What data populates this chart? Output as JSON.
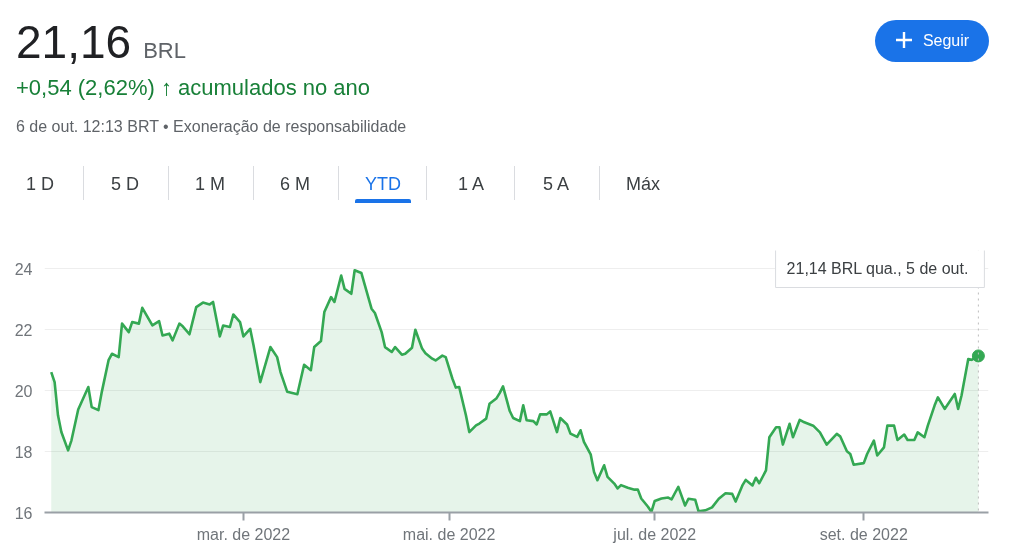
{
  "chart_data": {
    "type": "area",
    "title": "21,16",
    "subtitle": "+0,54 (2,62%) ↑ acumulados no ano",
    "annotations": [
      "BRL",
      "6 de out. 12:13 BRT • Exoneração de responsabilidade",
      "Seguir",
      "1 D",
      "5 D",
      "1 M",
      "6 M",
      "YTD",
      "1 A",
      "5 A",
      "Máx",
      "21,14 BRL  qua., 5 de out."
    ],
    "x": [
      "2022-01-03",
      "2022-01-04",
      "2022-01-05",
      "2022-01-06",
      "2022-01-08",
      "2022-01-09",
      "2022-01-11",
      "2022-01-14",
      "2022-01-15",
      "2022-01-17",
      "2022-01-18",
      "2022-01-20",
      "2022-01-21",
      "2022-01-23",
      "2022-01-24",
      "2022-01-26",
      "2022-01-27",
      "2022-01-29",
      "2022-01-30",
      "2022-02-02",
      "2022-02-04",
      "2022-02-05",
      "2022-02-07",
      "2022-02-08",
      "2022-02-10",
      "2022-02-11",
      "2022-02-13",
      "2022-02-15",
      "2022-02-17",
      "2022-02-19",
      "2022-02-20",
      "2022-02-22",
      "2022-02-23",
      "2022-02-25",
      "2022-02-26",
      "2022-02-28",
      "2022-03-01",
      "2022-03-03",
      "2022-03-04",
      "2022-03-06",
      "2022-03-09",
      "2022-03-11",
      "2022-03-12",
      "2022-03-14",
      "2022-03-17",
      "2022-03-19",
      "2022-03-21",
      "2022-03-22",
      "2022-03-24",
      "2022-03-25",
      "2022-03-27",
      "2022-03-28",
      "2022-03-30",
      "2022-03-31",
      "2022-04-02",
      "2022-04-03",
      "2022-04-05",
      "2022-04-08",
      "2022-04-09",
      "2022-04-11",
      "2022-04-12",
      "2022-04-14",
      "2022-04-15",
      "2022-04-17",
      "2022-04-18",
      "2022-04-20",
      "2022-04-21",
      "2022-04-23",
      "2022-04-24",
      "2022-04-26",
      "2022-04-27",
      "2022-04-29",
      "2022-04-30",
      "2022-05-02",
      "2022-05-03",
      "2022-05-04",
      "2022-05-06",
      "2022-05-07",
      "2022-05-09",
      "2022-05-10",
      "2022-05-12",
      "2022-05-13",
      "2022-05-15",
      "2022-05-16",
      "2022-05-17",
      "2022-05-19",
      "2022-05-20",
      "2022-05-22",
      "2022-05-23",
      "2022-05-24",
      "2022-05-26",
      "2022-05-27",
      "2022-05-28",
      "2022-05-30",
      "2022-05-31",
      "2022-06-02",
      "2022-06-03",
      "2022-06-05",
      "2022-06-06",
      "2022-06-08",
      "2022-06-09",
      "2022-06-10",
      "2022-06-12",
      "2022-06-13",
      "2022-06-14",
      "2022-06-16",
      "2022-06-17",
      "2022-06-19",
      "2022-06-20",
      "2022-06-21",
      "2022-06-23",
      "2022-06-25",
      "2022-06-26",
      "2022-06-27",
      "2022-06-29",
      "2022-06-30",
      "2022-07-01",
      "2022-07-03",
      "2022-07-05",
      "2022-07-06",
      "2022-07-07",
      "2022-07-08",
      "2022-07-10",
      "2022-07-11",
      "2022-07-13",
      "2022-07-14",
      "2022-07-16",
      "2022-07-18",
      "2022-07-20",
      "2022-07-22",
      "2022-07-24",
      "2022-07-25",
      "2022-07-27",
      "2022-07-28",
      "2022-07-30",
      "2022-07-31",
      "2022-08-01",
      "2022-08-03",
      "2022-08-04",
      "2022-08-06",
      "2022-08-07",
      "2022-08-08",
      "2022-08-10",
      "2022-08-11",
      "2022-08-13",
      "2022-08-14",
      "2022-08-17",
      "2022-08-19",
      "2022-08-21",
      "2022-08-24",
      "2022-08-25",
      "2022-08-27",
      "2022-08-28",
      "2022-08-29",
      "2022-09-01",
      "2022-09-02",
      "2022-09-04",
      "2022-09-05",
      "2022-09-07",
      "2022-09-08",
      "2022-09-10",
      "2022-09-11",
      "2022-09-13",
      "2022-09-14",
      "2022-09-16",
      "2022-09-17",
      "2022-09-19",
      "2022-09-20",
      "2022-09-22",
      "2022-09-23",
      "2022-09-25",
      "2022-09-26",
      "2022-09-28",
      "2022-09-29",
      "2022-09-30",
      "2022-10-02",
      "2022-10-03",
      "2022-10-05"
    ],
    "series": [
      {
        "color": "#34a853",
        "values": [
          20.61,
          20.28,
          19.19,
          18.64,
          18.04,
          18.37,
          19.38,
          20.12,
          19.46,
          19.36,
          19.96,
          21.0,
          21.21,
          21.1,
          22.2,
          21.92,
          22.25,
          22.2,
          22.72,
          22.14,
          22.28,
          21.81,
          21.87,
          21.65,
          22.2,
          22.11,
          21.85,
          22.74,
          22.89,
          22.83,
          22.91,
          21.78,
          22.14,
          22.09,
          22.5,
          22.25,
          21.78,
          22.03,
          21.49,
          20.28,
          21.43,
          21.1,
          20.61,
          19.96,
          19.88,
          20.85,
          20.67,
          21.43,
          21.63,
          22.58,
          23.07,
          22.91,
          23.78,
          23.34,
          23.18,
          23.95,
          23.86,
          22.69,
          22.55,
          21.92,
          21.43,
          21.27,
          21.43,
          21.18,
          21.21,
          21.41,
          22.0,
          21.38,
          21.23,
          21.05,
          20.99,
          21.15,
          21.1,
          20.39,
          20.1,
          20.12,
          19.19,
          18.64,
          18.86,
          18.92,
          19.08,
          19.57,
          19.74,
          19.92,
          20.14,
          19.33,
          19.1,
          19.0,
          19.52,
          19.03,
          19.0,
          18.89,
          19.22,
          19.22,
          19.32,
          18.64,
          19.1,
          18.89,
          18.59,
          18.48,
          18.7,
          18.32,
          17.91,
          17.33,
          17.06,
          17.55,
          17.17,
          16.95,
          16.79,
          16.9,
          16.81,
          16.75,
          16.75,
          16.46,
          16.19,
          16.02,
          16.38,
          16.46,
          16.49,
          16.43,
          16.64,
          16.84,
          16.23,
          16.45,
          16.42,
          16.04,
          16.07,
          16.17,
          16.45,
          16.63,
          16.61,
          16.36,
          16.89,
          17.07,
          16.89,
          17.14,
          16.96,
          17.38,
          18.47,
          18.8,
          18.8,
          18.23,
          18.91,
          18.47,
          19.04,
          18.98,
          18.85,
          18.63,
          18.23,
          18.58,
          18.5,
          18.01,
          17.92,
          17.57,
          17.62,
          17.92,
          18.36,
          17.87,
          18.14,
          18.85,
          18.85,
          18.38,
          18.56,
          18.38,
          18.38,
          18.63,
          18.47,
          18.85,
          19.51,
          19.78,
          19.4,
          19.56,
          19.89,
          19.4,
          19.84,
          21.04,
          21.01,
          21.14
        ]
      }
    ],
    "xlim": [
      "2022-01-01",
      "2022-10-08"
    ],
    "xticks": [
      {
        "value": "2022-03-01",
        "label": "mar. de 2022"
      },
      {
        "value": "2022-05-01",
        "label": "mai. de 2022"
      },
      {
        "value": "2022-07-01",
        "label": "jul. de 2022"
      },
      {
        "value": "2022-09-01",
        "label": "set. de 2022"
      }
    ],
    "ylim": [
      16,
      24.6
    ],
    "yticks": [
      16,
      18,
      20,
      22,
      24
    ],
    "grid": "y",
    "ref_lines": [
      {
        "axis": "x",
        "value": "2022-10-05",
        "line_style": "dotted",
        "color": "#bdbdbd"
      }
    ]
  }
}
